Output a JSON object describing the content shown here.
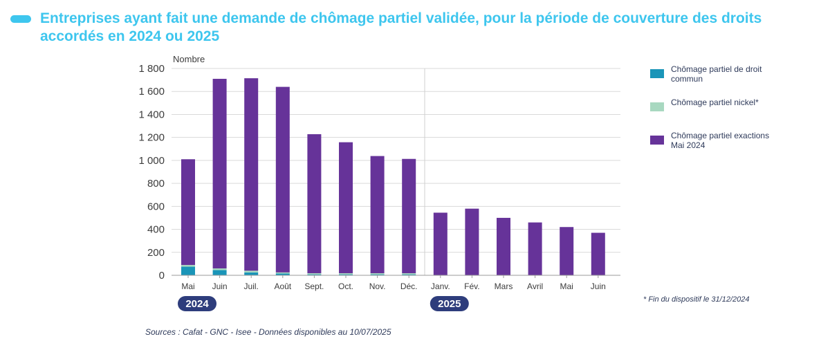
{
  "title": "Entreprises ayant fait une demande de chômage partiel validée, pour la période de couverture des droits accordés en 2024 ou 2025",
  "footnote": "* Fin du dispositif le 31/12/2024",
  "source": "Sources : Cafat - GNC - Isee - Données disponibles au 10/07/2025",
  "colors": {
    "accent": "#3ec6ee",
    "droit_commun": "#1a95b8",
    "nickel": "#a8d8c0",
    "exactions": "#663399",
    "year_badge": "#2e3d7c"
  },
  "chart_data": {
    "type": "bar",
    "stacked": true,
    "ylabel": "Nombre",
    "ylim": [
      0,
      1800
    ],
    "yticks": [
      0,
      200,
      400,
      600,
      800,
      1000,
      1200,
      1400,
      1600,
      1800
    ],
    "ytick_labels": [
      "0",
      "200",
      "400",
      "600",
      "800",
      "1 000",
      "1 200",
      "1 400",
      "1 600",
      "1 800"
    ],
    "categories": [
      "Mai",
      "Juin",
      "Juil.",
      "Août",
      "Sept.",
      "Oct.",
      "Nov.",
      "Déc.",
      "Janv.",
      "Fév.",
      "Mars",
      "Avril",
      "Mai",
      "Juin"
    ],
    "groups": [
      {
        "label": "2024",
        "start": 0,
        "end": 7
      },
      {
        "label": "2025",
        "start": 8,
        "end": 13
      }
    ],
    "series": [
      {
        "name": "Chômage partiel de droit commun",
        "color_key": "droit_commun",
        "values": [
          75,
          45,
          25,
          15,
          8,
          8,
          8,
          8,
          0,
          0,
          0,
          0,
          0,
          0
        ]
      },
      {
        "name": "Chômage partiel nickel*",
        "color_key": "nickel",
        "values": [
          15,
          15,
          15,
          10,
          10,
          10,
          10,
          10,
          0,
          0,
          0,
          0,
          0,
          0
        ]
      },
      {
        "name": "Chômage partiel exactions Mai 2024",
        "color_key": "exactions",
        "values": [
          920,
          1650,
          1675,
          1615,
          1210,
          1140,
          1020,
          995,
          545,
          580,
          500,
          460,
          420,
          370
        ]
      }
    ],
    "grid": true,
    "legend_position": "right"
  }
}
